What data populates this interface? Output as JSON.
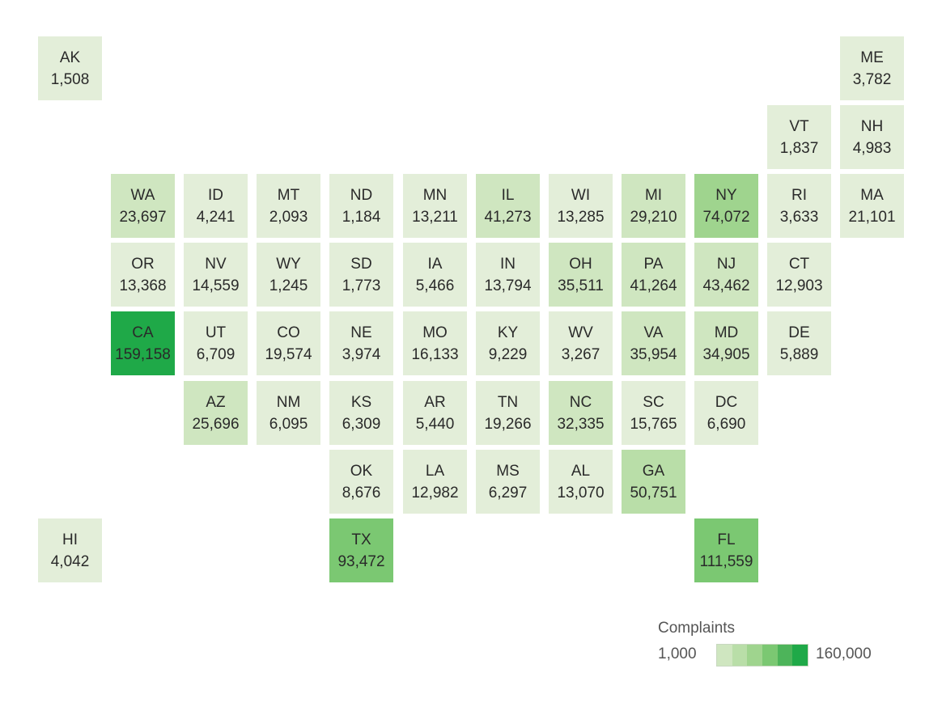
{
  "legend": {
    "title": "Complaints",
    "min_label": "1,000",
    "max_label": "160,000",
    "min_value": 1000,
    "max_value": 160000,
    "colors": [
      "#e3eed9",
      "#cfe6c0",
      "#b9dea8",
      "#9fd48e",
      "#7bc872",
      "#4db45a",
      "#1fa948"
    ]
  },
  "states": [
    {
      "abbr": "AK",
      "value": 1508,
      "label": "1,508",
      "row": 0,
      "col": 0
    },
    {
      "abbr": "ME",
      "value": 3782,
      "label": "3,782",
      "row": 0,
      "col": 11
    },
    {
      "abbr": "VT",
      "value": 1837,
      "label": "1,837",
      "row": 1,
      "col": 10
    },
    {
      "abbr": "NH",
      "value": 4983,
      "label": "4,983",
      "row": 1,
      "col": 11
    },
    {
      "abbr": "WA",
      "value": 23697,
      "label": "23,697",
      "row": 2,
      "col": 1
    },
    {
      "abbr": "ID",
      "value": 4241,
      "label": "4,241",
      "row": 2,
      "col": 2
    },
    {
      "abbr": "MT",
      "value": 2093,
      "label": "2,093",
      "row": 2,
      "col": 3
    },
    {
      "abbr": "ND",
      "value": 1184,
      "label": "1,184",
      "row": 2,
      "col": 4
    },
    {
      "abbr": "MN",
      "value": 13211,
      "label": "13,211",
      "row": 2,
      "col": 5
    },
    {
      "abbr": "IL",
      "value": 41273,
      "label": "41,273",
      "row": 2,
      "col": 6
    },
    {
      "abbr": "WI",
      "value": 13285,
      "label": "13,285",
      "row": 2,
      "col": 7
    },
    {
      "abbr": "MI",
      "value": 29210,
      "label": "29,210",
      "row": 2,
      "col": 8
    },
    {
      "abbr": "NY",
      "value": 74072,
      "label": "74,072",
      "row": 2,
      "col": 9
    },
    {
      "abbr": "RI",
      "value": 3633,
      "label": "3,633",
      "row": 2,
      "col": 10
    },
    {
      "abbr": "MA",
      "value": 21101,
      "label": "21,101",
      "row": 2,
      "col": 11
    },
    {
      "abbr": "OR",
      "value": 13368,
      "label": "13,368",
      "row": 3,
      "col": 1
    },
    {
      "abbr": "NV",
      "value": 14559,
      "label": "14,559",
      "row": 3,
      "col": 2
    },
    {
      "abbr": "WY",
      "value": 1245,
      "label": "1,245",
      "row": 3,
      "col": 3
    },
    {
      "abbr": "SD",
      "value": 1773,
      "label": "1,773",
      "row": 3,
      "col": 4
    },
    {
      "abbr": "IA",
      "value": 5466,
      "label": "5,466",
      "row": 3,
      "col": 5
    },
    {
      "abbr": "IN",
      "value": 13794,
      "label": "13,794",
      "row": 3,
      "col": 6
    },
    {
      "abbr": "OH",
      "value": 35511,
      "label": "35,511",
      "row": 3,
      "col": 7
    },
    {
      "abbr": "PA",
      "value": 41264,
      "label": "41,264",
      "row": 3,
      "col": 8
    },
    {
      "abbr": "NJ",
      "value": 43462,
      "label": "43,462",
      "row": 3,
      "col": 9
    },
    {
      "abbr": "CT",
      "value": 12903,
      "label": "12,903",
      "row": 3,
      "col": 10
    },
    {
      "abbr": "CA",
      "value": 159158,
      "label": "159,158",
      "row": 4,
      "col": 1
    },
    {
      "abbr": "UT",
      "value": 6709,
      "label": "6,709",
      "row": 4,
      "col": 2
    },
    {
      "abbr": "CO",
      "value": 19574,
      "label": "19,574",
      "row": 4,
      "col": 3
    },
    {
      "abbr": "NE",
      "value": 3974,
      "label": "3,974",
      "row": 4,
      "col": 4
    },
    {
      "abbr": "MO",
      "value": 16133,
      "label": "16,133",
      "row": 4,
      "col": 5
    },
    {
      "abbr": "KY",
      "value": 9229,
      "label": "9,229",
      "row": 4,
      "col": 6
    },
    {
      "abbr": "WV",
      "value": 3267,
      "label": "3,267",
      "row": 4,
      "col": 7
    },
    {
      "abbr": "VA",
      "value": 35954,
      "label": "35,954",
      "row": 4,
      "col": 8
    },
    {
      "abbr": "MD",
      "value": 34905,
      "label": "34,905",
      "row": 4,
      "col": 9
    },
    {
      "abbr": "DE",
      "value": 5889,
      "label": "5,889",
      "row": 4,
      "col": 10
    },
    {
      "abbr": "AZ",
      "value": 25696,
      "label": "25,696",
      "row": 5,
      "col": 2
    },
    {
      "abbr": "NM",
      "value": 6095,
      "label": "6,095",
      "row": 5,
      "col": 3
    },
    {
      "abbr": "KS",
      "value": 6309,
      "label": "6,309",
      "row": 5,
      "col": 4
    },
    {
      "abbr": "AR",
      "value": 5440,
      "label": "5,440",
      "row": 5,
      "col": 5
    },
    {
      "abbr": "TN",
      "value": 19266,
      "label": "19,266",
      "row": 5,
      "col": 6
    },
    {
      "abbr": "NC",
      "value": 32335,
      "label": "32,335",
      "row": 5,
      "col": 7
    },
    {
      "abbr": "SC",
      "value": 15765,
      "label": "15,765",
      "row": 5,
      "col": 8
    },
    {
      "abbr": "DC",
      "value": 6690,
      "label": "6,690",
      "row": 5,
      "col": 9
    },
    {
      "abbr": "OK",
      "value": 8676,
      "label": "8,676",
      "row": 6,
      "col": 4
    },
    {
      "abbr": "LA",
      "value": 12982,
      "label": "12,982",
      "row": 6,
      "col": 5
    },
    {
      "abbr": "MS",
      "value": 6297,
      "label": "6,297",
      "row": 6,
      "col": 6
    },
    {
      "abbr": "AL",
      "value": 13070,
      "label": "13,070",
      "row": 6,
      "col": 7
    },
    {
      "abbr": "GA",
      "value": 50751,
      "label": "50,751",
      "row": 6,
      "col": 8
    },
    {
      "abbr": "HI",
      "value": 4042,
      "label": "4,042",
      "row": 7,
      "col": 0
    },
    {
      "abbr": "TX",
      "value": 93472,
      "label": "93,472",
      "row": 7,
      "col": 4
    },
    {
      "abbr": "FL",
      "value": 111559,
      "label": "111,559",
      "row": 7,
      "col": 9
    }
  ]
}
